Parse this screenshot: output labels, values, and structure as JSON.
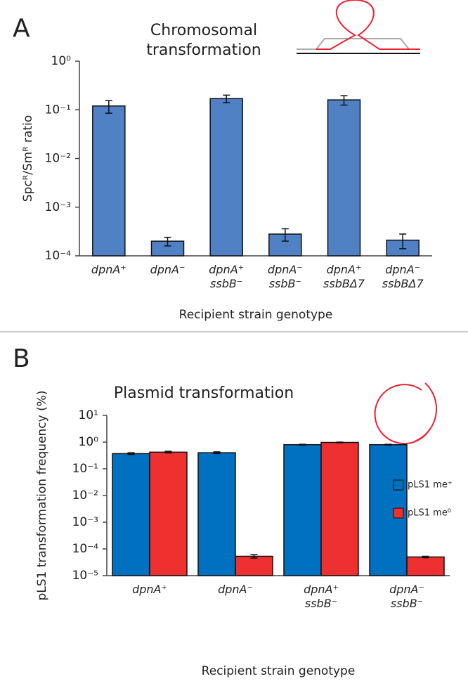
{
  "chart_data": [
    {
      "type": "bar",
      "panel_label": "A",
      "title": "Chromosomal transformation",
      "y_label": "Spcᴿ/Smᴿ ratio",
      "x_label": "Recipient strain genotype",
      "categories": [
        "dpnA⁺",
        "dpnA⁻",
        "dpnA⁺ ssbB⁻",
        "dpnA⁻ ssbB⁻",
        "dpnA⁺ ssbBΔ7",
        "dpnA⁻ ssbBΔ7"
      ],
      "values": [
        0.12,
        0.0002,
        0.17,
        0.00028,
        0.16,
        0.00021
      ],
      "errors": [
        0.035,
        4e-05,
        0.03,
        8e-05,
        0.035,
        7e-05
      ],
      "color": "#4f81c4",
      "yscale": "log",
      "ylim": [
        0.0001,
        1
      ],
      "yticks": [
        {
          "value": 0.0001,
          "label": "10⁻⁴"
        },
        {
          "value": 0.001,
          "label": "10⁻³"
        },
        {
          "value": 0.01,
          "label": "10⁻²"
        },
        {
          "value": 0.1,
          "label": "10⁻¹"
        },
        {
          "value": 1,
          "label": "10⁰"
        }
      ]
    },
    {
      "type": "bar",
      "panel_label": "B",
      "title": "Plasmid transformation",
      "y_label": "pLS1 transformation frequency (%)",
      "x_label": "Recipient strain genotype",
      "categories": [
        "dpnA⁺",
        "dpnA⁻",
        "dpnA⁺ ssbB⁻",
        "dpnA⁻ ssbB⁻"
      ],
      "series": [
        {
          "name": "pLS1 me⁺",
          "color": "#0070c0",
          "values": [
            0.37,
            0.4,
            0.8,
            0.8
          ],
          "errors": [
            0.03,
            0.03,
            0.03,
            0.03
          ]
        },
        {
          "name": "pLS1 me⁰",
          "color": "#ee3030",
          "values": [
            0.42,
            5.3e-05,
            0.97,
            5e-05
          ],
          "errors": [
            0.03,
            8e-06,
            0.03,
            3e-06
          ]
        }
      ],
      "legend": "right",
      "yscale": "log",
      "ylim": [
        1e-05,
        10
      ],
      "yticks": [
        {
          "value": 1e-05,
          "label": "10⁻⁵"
        },
        {
          "value": 0.0001,
          "label": "10⁻⁴"
        },
        {
          "value": 0.001,
          "label": "10⁻³"
        },
        {
          "value": 0.01,
          "label": "10⁻²"
        },
        {
          "value": 0.1,
          "label": "10⁻¹"
        },
        {
          "value": 1,
          "label": "10⁰"
        },
        {
          "value": 10,
          "label": "10¹"
        }
      ]
    }
  ]
}
